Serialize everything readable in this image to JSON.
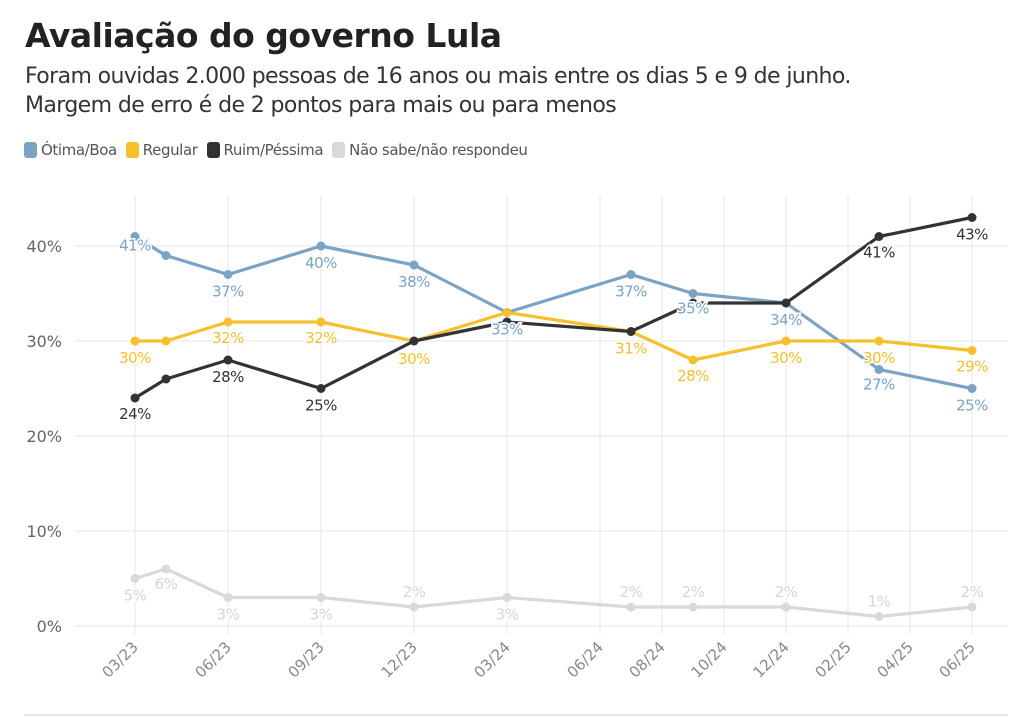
{
  "header": {
    "title": "Avaliação do governo Lula",
    "subtitle_line1": "Foram ouvidas 2.000 pessoas de 16 anos ou mais entre os dias 5 e 9 de junho.",
    "subtitle_line2": "Margem de erro é de 2 pontos para mais ou para menos"
  },
  "legend": [
    {
      "label": "Ótima/Boa",
      "color": "#7ba3c4"
    },
    {
      "label": "Regular",
      "color": "#f5c02c"
    },
    {
      "label": "Ruim/Péssima",
      "color": "#333333"
    },
    {
      "label": "Não sabe/não respondeu",
      "color": "#d9d9d9"
    }
  ],
  "chart_data": {
    "type": "line",
    "title": "Avaliação do governo Lula",
    "xlabel": "",
    "ylabel": "",
    "ylim": [
      0,
      45
    ],
    "grid": true,
    "legend_position": "top-left",
    "y_ticks": [
      0,
      10,
      20,
      30,
      40
    ],
    "y_tick_labels": [
      "0%",
      "10%",
      "20%",
      "30%",
      "40%"
    ],
    "x_ticks": [
      "2023-03",
      "2023-06",
      "2023-09",
      "2023-12",
      "2024-03",
      "2024-06",
      "2024-08",
      "2024-10",
      "2024-12",
      "2025-02",
      "2025-04",
      "2025-06"
    ],
    "x_tick_labels": [
      "03/23",
      "06/23",
      "09/23",
      "12/23",
      "03/24",
      "06/24",
      "08/24",
      "10/24",
      "12/24",
      "02/25",
      "04/25",
      "06/25"
    ],
    "x": [
      "2023-03",
      "2023-04",
      "2023-06",
      "2023-09",
      "2023-12",
      "2024-03",
      "2024-07",
      "2024-09",
      "2024-12",
      "2025-03",
      "2025-06"
    ],
    "series": [
      {
        "name": "Ótima/Boa",
        "color": "#7ba3c4",
        "label_color": "#7ba3c4",
        "values": [
          41,
          39,
          37,
          40,
          38,
          33,
          37,
          35,
          34,
          27,
          25
        ],
        "labels": [
          "41%",
          null,
          "37%",
          "40%",
          "38%",
          "33%",
          "37%",
          "35%",
          "34%",
          "27%",
          "25%"
        ]
      },
      {
        "name": "Regular",
        "color": "#f5c02c",
        "label_color": "#f5c02c",
        "values": [
          30,
          30,
          32,
          32,
          30,
          33,
          31,
          28,
          30,
          30,
          29
        ],
        "labels": [
          "30%",
          null,
          "32%",
          "32%",
          "30%",
          null,
          "31%",
          "28%",
          "30%",
          "30%",
          "29%"
        ]
      },
      {
        "name": "Ruim/Péssima",
        "color": "#333333",
        "label_color": "#333333",
        "values": [
          24,
          26,
          28,
          25,
          30,
          32,
          31,
          34,
          34,
          41,
          43
        ],
        "labels": [
          "24%",
          null,
          "28%",
          "25%",
          null,
          null,
          null,
          null,
          null,
          "41%",
          "43%"
        ]
      },
      {
        "name": "Não sabe/não respondeu",
        "color": "#d9d9d9",
        "label_color": "#d6d6d6",
        "values": [
          5,
          6,
          3,
          3,
          2,
          3,
          2,
          2,
          2,
          1,
          2
        ],
        "labels": [
          "5%",
          "6%",
          "3%",
          "3%",
          "2%",
          "3%",
          "2%",
          "2%",
          "2%",
          "1%",
          "2%"
        ]
      }
    ]
  }
}
